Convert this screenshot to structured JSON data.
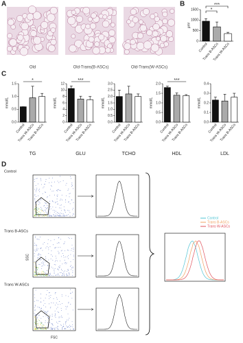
{
  "figure": {
    "panel_labels": [
      "A",
      "B",
      "C",
      "D"
    ]
  },
  "panel_a": {
    "captions": [
      "Old",
      "Old-Trans(B-ASCs)",
      "Old-Trans(W-ASCs)"
    ]
  },
  "chart_data": [
    {
      "type": "bar",
      "ylabel": "μm²",
      "categories": [
        "Control",
        "Trans B-ASCs",
        "Trans W-ASCs"
      ],
      "values": [
        950,
        680,
        360
      ],
      "errors": [
        120,
        230,
        60
      ],
      "colors": [
        "#111111",
        "#aaaaaa",
        "#ffffff"
      ],
      "ylim": [
        0,
        1500
      ],
      "yticks": [
        0,
        500,
        1000,
        1500
      ],
      "significance": [
        "*",
        "***"
      ]
    },
    {
      "type": "bar",
      "title": "TG",
      "ylabel": "mmol/L",
      "categories": [
        "Control",
        "Trans W-ASCs",
        "Trans B-ASCs"
      ],
      "values": [
        0.6,
        0.95,
        1.0
      ],
      "errors": [
        0,
        0.45,
        0.12
      ],
      "colors": [
        "#111111",
        "#aaaaaa",
        "#ffffff"
      ],
      "ylim": [
        0,
        1.5
      ],
      "yticks": [
        {
          "value": 0,
          "label": "0.0"
        },
        0.5,
        {
          "value": 1,
          "label": "1.0"
        },
        1.5
      ],
      "significance": [
        "*"
      ]
    },
    {
      "type": "bar",
      "title": "GLU",
      "ylabel": "mmol/L",
      "categories": [
        "Control",
        "Trans W-ASCs",
        "Trans B-ASCs"
      ],
      "values": [
        10.5,
        7.2,
        7.0
      ],
      "errors": [
        0.8,
        0.9,
        1.0
      ],
      "colors": [
        "#111111",
        "#aaaaaa",
        "#ffffff"
      ],
      "ylim": [
        0,
        12
      ],
      "yticks": [
        0,
        2,
        4,
        6,
        8,
        10,
        12
      ],
      "significance": [
        "***"
      ]
    },
    {
      "type": "bar",
      "title": "TCHO",
      "ylabel": "mmol/L",
      "categories": [
        "Control",
        "Trans W-ASCs",
        "Trans B-ASCs"
      ],
      "values": [
        2.0,
        2.2,
        2.0
      ],
      "errors": [
        0.5,
        0.6,
        0.2
      ],
      "colors": [
        "#111111",
        "#aaaaaa",
        "#ffffff"
      ],
      "ylim": [
        0,
        3
      ],
      "yticks": [
        {
          "value": 0,
          "label": "0.0"
        },
        0.5,
        {
          "value": 1,
          "label": "1.0"
        },
        1.5,
        {
          "value": 2,
          "label": "2.0"
        },
        2.5,
        {
          "value": 3,
          "label": "3.0"
        }
      ]
    },
    {
      "type": "bar",
      "title": "HDL",
      "ylabel": "mmol/L",
      "categories": [
        "Control",
        "Trans W-ASCs",
        "Trans B-ASCs"
      ],
      "values": [
        1.8,
        1.4,
        1.38
      ],
      "errors": [
        0.07,
        0.12,
        0.05
      ],
      "colors": [
        "#111111",
        "#aaaaaa",
        "#ffffff"
      ],
      "ylim": [
        0,
        2
      ],
      "yticks": [
        {
          "value": 0,
          "label": "0.0"
        },
        0.5,
        {
          "value": 1,
          "label": "1.0"
        },
        1.5,
        {
          "value": 2,
          "label": "2.0"
        }
      ],
      "significance": [
        "***"
      ]
    },
    {
      "type": "bar",
      "title": "LDL",
      "ylabel": "mmol/L",
      "categories": [
        "Control",
        "Trans W-ASCs",
        "Trans B-ASCs"
      ],
      "values": [
        0.23,
        0.22,
        0.26
      ],
      "errors": [
        0.03,
        0.07,
        0.04
      ],
      "colors": [
        "#111111",
        "#aaaaaa",
        "#ffffff"
      ],
      "ylim": [
        0,
        0.4
      ],
      "yticks": [
        {
          "value": 0,
          "label": "0.0"
        },
        0.1,
        0.2,
        0.3,
        0.4
      ]
    }
  ],
  "panel_d": {
    "row_labels": [
      "Control",
      "Trans B-ASCs",
      "Trans W-ASCs"
    ],
    "y_axis": "SSC",
    "x_axis": "FSC",
    "legend": [
      {
        "name": "Control",
        "color": "#4fc4d4"
      },
      {
        "name": "Trans B-ASCs",
        "color": "#f0a060"
      },
      {
        "name": "Trans W-ASCs",
        "color": "#e0505a"
      }
    ]
  }
}
